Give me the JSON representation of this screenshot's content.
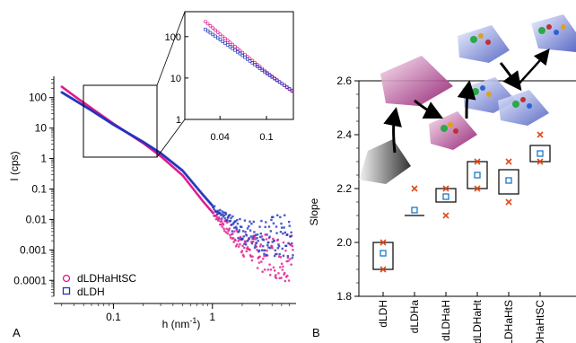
{
  "chart_data": [
    {
      "panel": "A",
      "type": "scatter",
      "xlabel": "h (nm",
      "xlabel_sup": "-1",
      "xlabel_end": ")",
      "ylabel": "I (cps)",
      "xscale": "log",
      "yscale": "log",
      "xlim": [
        0.025,
        7
      ],
      "ylim": [
        3e-05,
        500
      ],
      "xticks": [
        {
          "v": 0.1,
          "label": "0.1"
        },
        {
          "v": 1,
          "label": "1"
        }
      ],
      "yticks": [
        {
          "v": 100,
          "label": "100"
        },
        {
          "v": 10,
          "label": "10"
        },
        {
          "v": 1,
          "label": "1"
        },
        {
          "v": 0.1,
          "label": "0.1"
        },
        {
          "v": 0.01,
          "label": "0.01"
        },
        {
          "v": 0.001,
          "label": "0.001"
        },
        {
          "v": 0.0001,
          "label": "0.0001"
        }
      ],
      "legend_position": "bottom-left",
      "series": [
        {
          "name": "dLDHaHtSC",
          "marker": "circle",
          "color": "#e0188c",
          "points": [
            [
              0.03,
              230
            ],
            [
              0.04,
              115
            ],
            [
              0.06,
              45
            ],
            [
              0.1,
              14
            ],
            [
              0.2,
              3.2
            ],
            [
              0.3,
              1.2
            ],
            [
              0.5,
              0.28
            ],
            [
              0.8,
              0.04
            ],
            [
              1.1,
              0.012
            ],
            [
              1.5,
              0.004
            ],
            [
              2,
              0.0015
            ],
            [
              3,
              0.0008
            ],
            [
              5,
              0.0006
            ]
          ]
        },
        {
          "name": "dLDH",
          "marker": "square",
          "color": "#2233bb",
          "points": [
            [
              0.03,
              150
            ],
            [
              0.04,
              85
            ],
            [
              0.06,
              38
            ],
            [
              0.1,
              13
            ],
            [
              0.2,
              3.5
            ],
            [
              0.3,
              1.5
            ],
            [
              0.5,
              0.4
            ],
            [
              0.8,
              0.065
            ],
            [
              1.1,
              0.02
            ],
            [
              1.5,
              0.008
            ],
            [
              2,
              0.004
            ],
            [
              3,
              0.003
            ],
            [
              5,
              0.0025
            ]
          ]
        }
      ],
      "inset": {
        "xlim": [
          0.02,
          0.17
        ],
        "ylim": [
          1,
          400
        ],
        "xticks": [
          {
            "v": 0.04,
            "label": "0.04"
          },
          {
            "v": 0.1,
            "label": "0.1"
          }
        ],
        "yticks": [
          {
            "v": 100,
            "label": "100"
          },
          {
            "v": 10,
            "label": "10"
          },
          {
            "v": 1,
            "label": "1"
          }
        ]
      },
      "panel_label": "A"
    },
    {
      "panel": "B",
      "type": "box",
      "ylabel": "Slope",
      "ylim": [
        1.8,
        2.6
      ],
      "yticks": [
        {
          "v": 1.8,
          "label": "1.8"
        },
        {
          "v": 2.0,
          "label": "2.0"
        },
        {
          "v": 2.2,
          "label": "2.2"
        },
        {
          "v": 2.4,
          "label": "2.4"
        },
        {
          "v": 2.6,
          "label": "2.6"
        }
      ],
      "categories": [
        "dLDH",
        "dLDHa",
        "dLDHaH",
        "dLDHaHt",
        "dLDHaHtS",
        "dLDHaHtSC"
      ],
      "mean_color": "#1a78c8",
      "point_color": "#e04a1a",
      "groups": [
        {
          "box": [
            1.9,
            2.0
          ],
          "mean": 1.96,
          "points": [
            1.9,
            2.0
          ]
        },
        {
          "box": [
            2.1,
            2.1
          ],
          "mean": 2.12,
          "points": [
            2.2
          ]
        },
        {
          "box": [
            2.15,
            2.2
          ],
          "mean": 2.17,
          "points": [
            2.1,
            2.2
          ]
        },
        {
          "box": [
            2.2,
            2.3
          ],
          "mean": 2.25,
          "points": [
            2.2,
            2.3
          ]
        },
        {
          "box": [
            2.18,
            2.27
          ],
          "mean": 2.23,
          "points": [
            2.15,
            2.3
          ]
        },
        {
          "box": [
            2.3,
            2.36
          ],
          "mean": 2.33,
          "points": [
            2.3,
            2.4
          ]
        }
      ],
      "panel_label": "B"
    }
  ]
}
